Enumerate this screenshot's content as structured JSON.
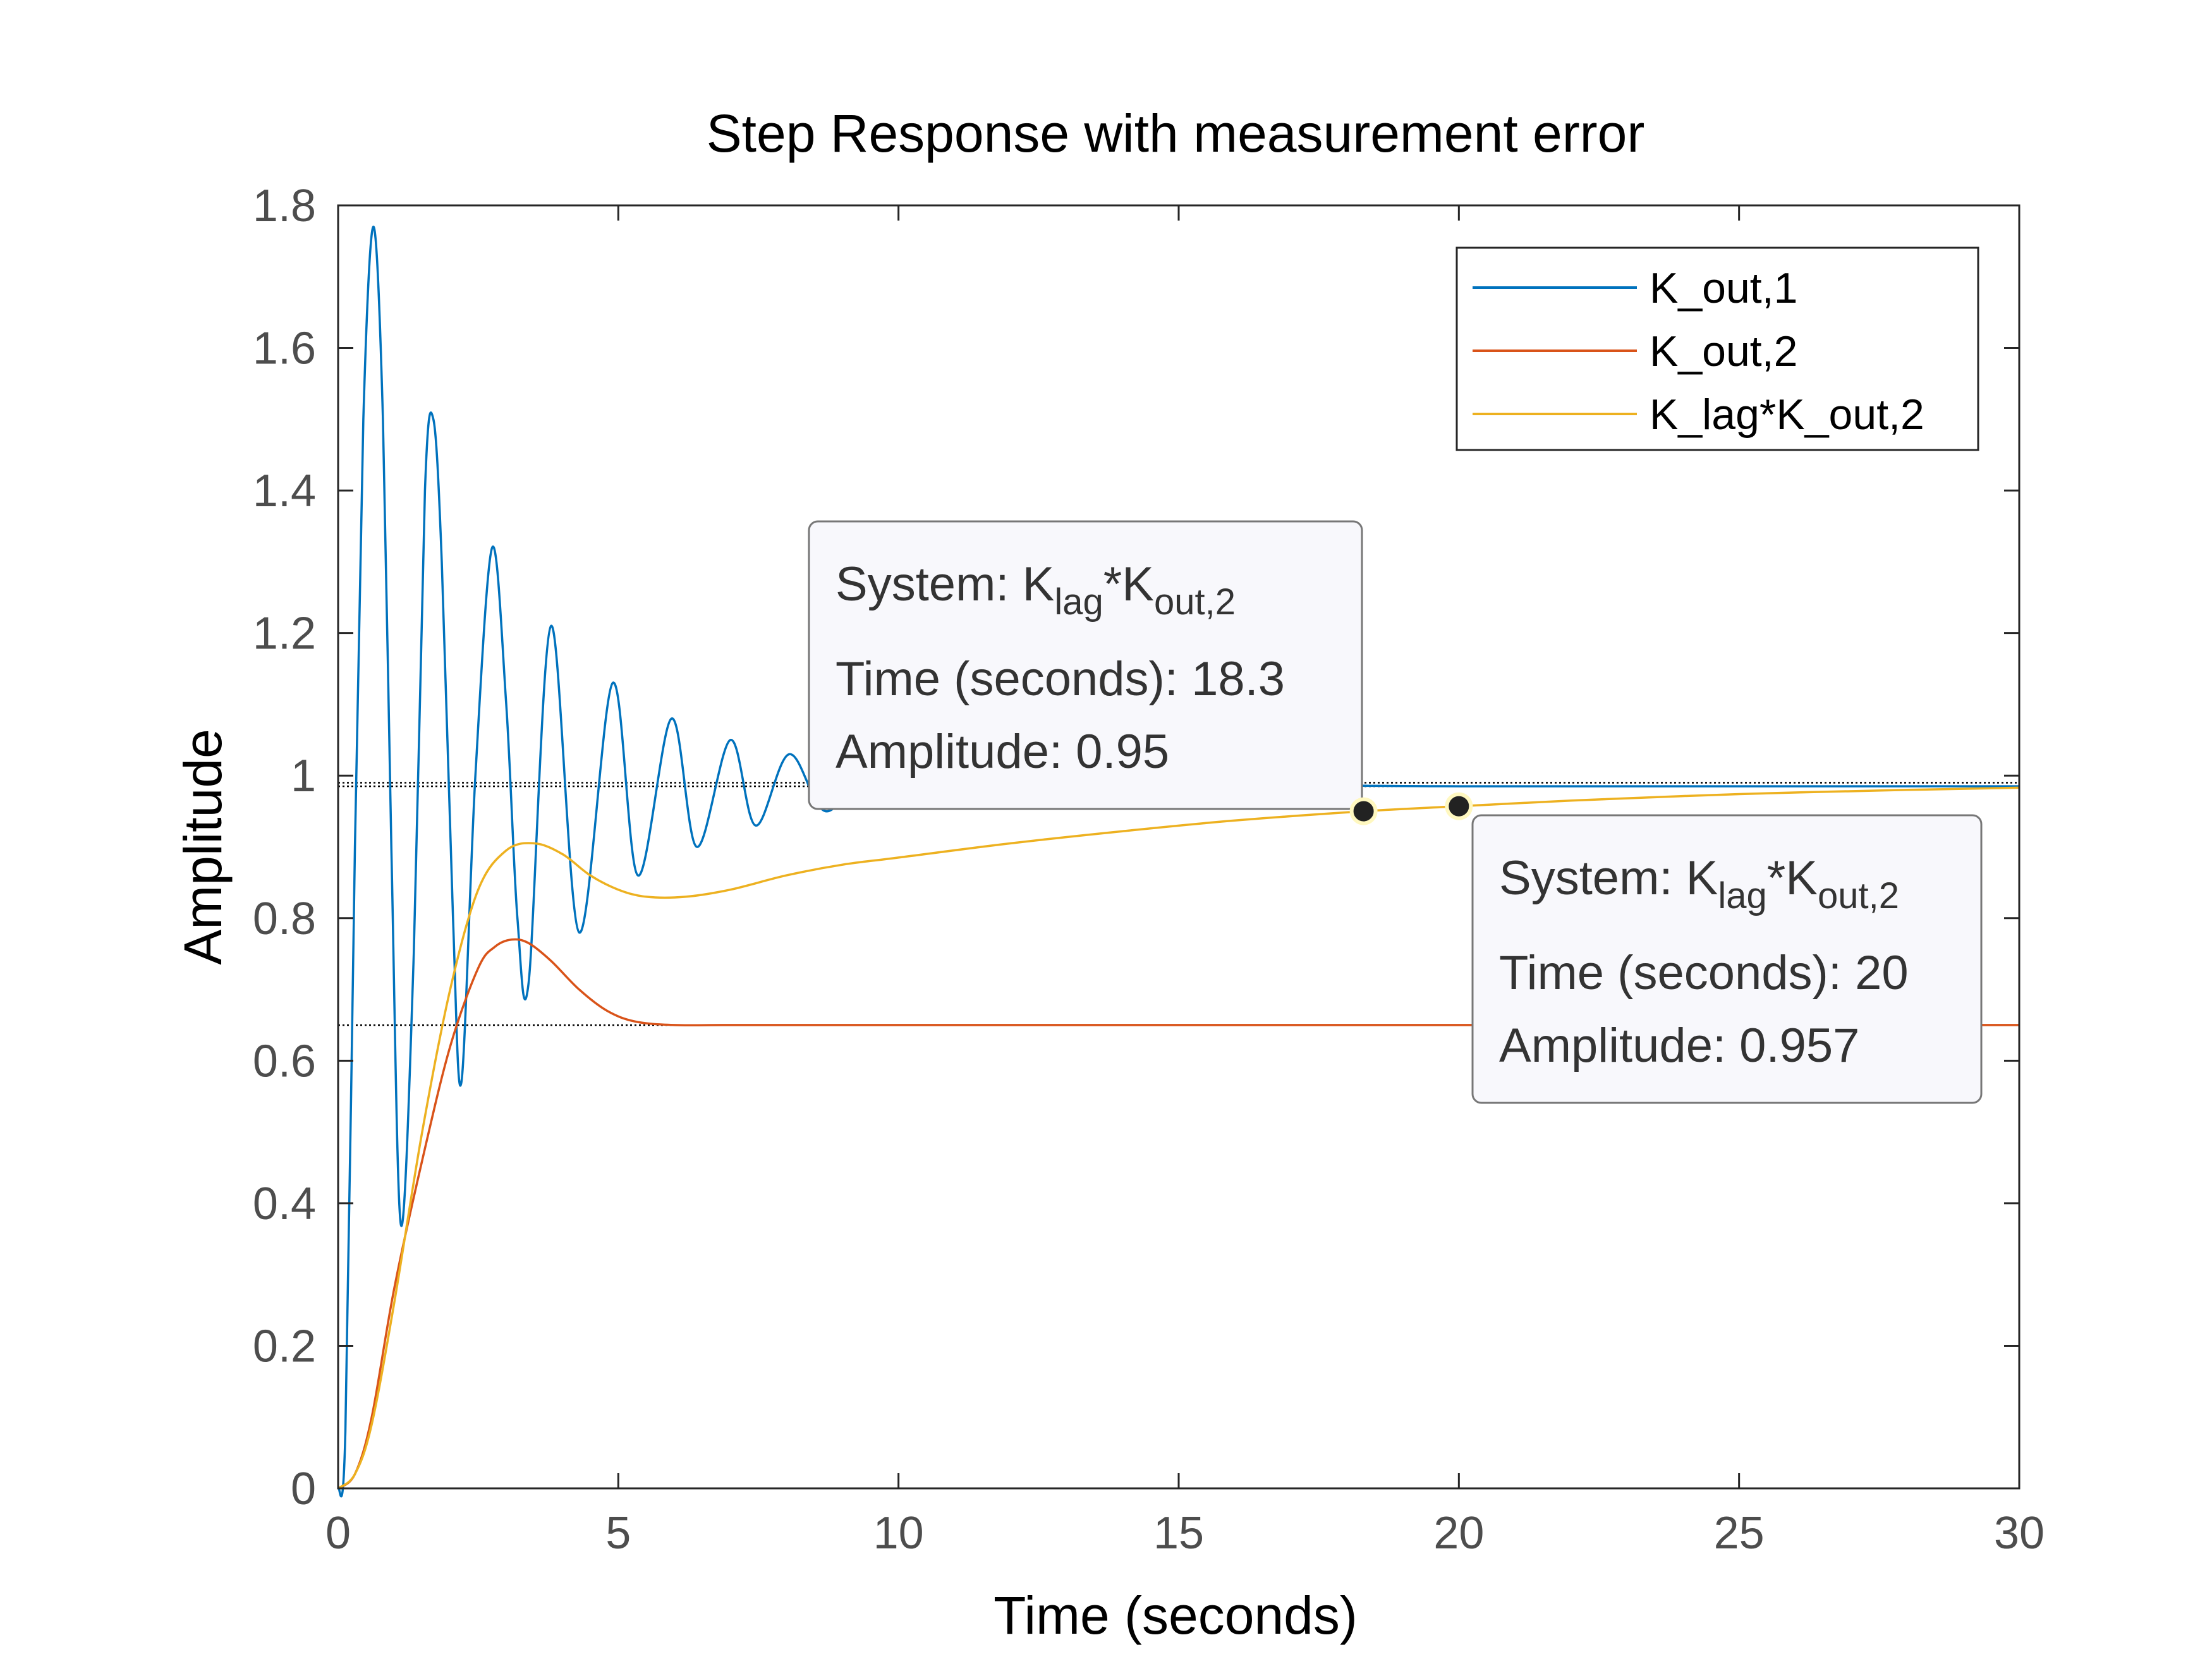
{
  "chart_data": {
    "type": "line",
    "title": "Step Response with measurement error",
    "xlabel": "Time (seconds)",
    "ylabel": "Amplitude",
    "xlim": [
      0,
      30
    ],
    "ylim": [
      0,
      1.8
    ],
    "xticks": [
      "0",
      "5",
      "10",
      "15",
      "20",
      "25",
      "30"
    ],
    "yticks": [
      "0",
      "0.2",
      "0.4",
      "0.6",
      "0.8",
      "1",
      "1.2",
      "1.4",
      "1.6",
      "1.8"
    ],
    "grid": false,
    "legend_position": "top-right",
    "series": [
      {
        "name": "K_out,1",
        "color": "#0072BD",
        "final_value": 0.985,
        "x": [
          0,
          0.13,
          0.3,
          0.45,
          0.63,
          0.8,
          0.95,
          1.12,
          1.35,
          1.55,
          1.7,
          1.85,
          2.05,
          2.2,
          2.45,
          2.75,
          3.0,
          3.2,
          3.4,
          3.8,
          4.3,
          4.9,
          5.35,
          5.95,
          6.4,
          7.0,
          7.45,
          8.05,
          8.7,
          9.5,
          10.5,
          12.0,
          14.0,
          17.0,
          20.0,
          25.0,
          30.0
        ],
        "y": [
          0,
          0.08,
          0.9,
          1.5,
          1.77,
          1.5,
          0.9,
          0.37,
          0.75,
          1.4,
          1.5,
          1.3,
          0.8,
          0.57,
          1.0,
          1.32,
          1.1,
          0.8,
          0.71,
          1.21,
          0.78,
          1.13,
          0.86,
          1.08,
          0.9,
          1.05,
          0.93,
          1.03,
          0.95,
          1.01,
          0.975,
          0.99,
          0.982,
          0.986,
          0.985,
          0.985,
          0.985
        ]
      },
      {
        "name": "K_out,2",
        "color": "#D95319",
        "final_value": 0.65,
        "x": [
          0,
          0.3,
          0.6,
          1.0,
          1.5,
          2.0,
          2.5,
          2.8,
          3.1,
          3.4,
          3.8,
          4.3,
          4.8,
          5.3,
          6.0,
          7.0,
          10.0,
          15.0,
          20.0,
          25.0,
          30.0
        ],
        "y": [
          0,
          0.02,
          0.1,
          0.28,
          0.46,
          0.62,
          0.73,
          0.76,
          0.77,
          0.765,
          0.74,
          0.7,
          0.67,
          0.655,
          0.65,
          0.65,
          0.65,
          0.65,
          0.65,
          0.65,
          0.65
        ]
      },
      {
        "name": "K_lag*K_out,2",
        "color": "#EDB120",
        "final_value": 0.99,
        "x": [
          0,
          0.3,
          0.6,
          1.0,
          1.5,
          2.0,
          2.5,
          3.0,
          3.5,
          4.0,
          4.5,
          5.0,
          5.5,
          6.2,
          7.0,
          8.0,
          9.0,
          10.0,
          12.0,
          14.0,
          16.0,
          18.3,
          20.0,
          22.0,
          25.0,
          28.0,
          30.0
        ],
        "y": [
          0,
          0.02,
          0.09,
          0.26,
          0.5,
          0.7,
          0.84,
          0.895,
          0.905,
          0.89,
          0.86,
          0.84,
          0.83,
          0.83,
          0.84,
          0.86,
          0.875,
          0.885,
          0.905,
          0.922,
          0.937,
          0.95,
          0.957,
          0.965,
          0.974,
          0.98,
          0.983
        ]
      }
    ],
    "reference_lines": [
      {
        "y": 0.985,
        "style": "dotted"
      },
      {
        "y": 0.99,
        "style": "dotted"
      },
      {
        "y": 0.65,
        "style": "dotted"
      }
    ],
    "datatips": [
      {
        "system_label": "System: ",
        "system_main1": "K",
        "system_sub1": "lag",
        "system_main2": "*K",
        "system_sub2": "out,2",
        "time_line": "Time (seconds): 18.3",
        "amplitude_line": "Amplitude: 0.95",
        "x": 18.3,
        "y": 0.95
      },
      {
        "system_label": "System: ",
        "system_main1": "K",
        "system_sub1": "lag",
        "system_main2": "*K",
        "system_sub2": "out,2",
        "time_line": "Time (seconds): 20",
        "amplitude_line": "Amplitude: 0.957",
        "x": 20,
        "y": 0.957
      }
    ]
  }
}
